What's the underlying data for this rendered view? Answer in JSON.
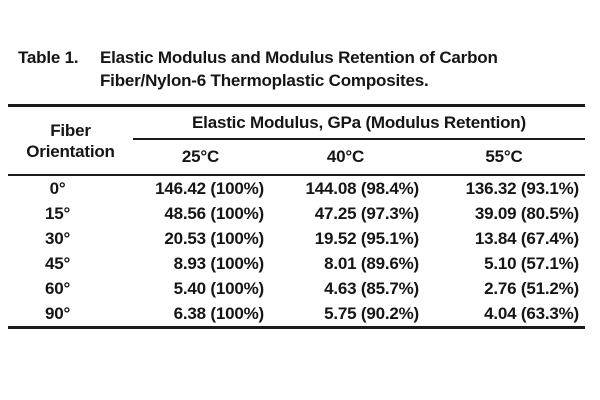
{
  "page": {
    "background": "#ffffff"
  },
  "colors": {
    "text": "#151515",
    "rule": "#1b1b1b",
    "background": "#ffffff"
  },
  "caption": {
    "label": "Table 1.",
    "line1": "Elastic Modulus and Modulus Retention of Carbon",
    "line2": "Fiber/Nylon-6 Thermoplastic Composites."
  },
  "table": {
    "row_header": {
      "line1": "Fiber",
      "line2": "Orientation"
    },
    "group_header": "Elastic Modulus, GPa (Modulus Retention)",
    "columns": [
      "25°C",
      "40°C",
      "55°C"
    ],
    "rows": [
      {
        "orientation": "0°",
        "c25": "146.42 (100%)",
        "c40": "144.08 (98.4%)",
        "c55": "136.32 (93.1%)"
      },
      {
        "orientation": "15°",
        "c25": "48.56 (100%)",
        "c40": "47.25 (97.3%)",
        "c55": "39.09 (80.5%)"
      },
      {
        "orientation": "30°",
        "c25": "20.53 (100%)",
        "c40": "19.52 (95.1%)",
        "c55": "13.84 (67.4%)"
      },
      {
        "orientation": "45°",
        "c25": "8.93 (100%)",
        "c40": "8.01 (89.6%)",
        "c55": "5.10 (57.1%)"
      },
      {
        "orientation": "60°",
        "c25": "5.40 (100%)",
        "c40": "4.63 (85.7%)",
        "c55": "2.76 (51.2%)"
      },
      {
        "orientation": "90°",
        "c25": "6.38 (100%)",
        "c40": "5.75 (90.2%)",
        "c55": "4.04 (63.3%)"
      }
    ]
  },
  "chart_data": {
    "type": "table",
    "title": "Table 1. Elastic Modulus and Modulus Retention of Carbon Fiber/Nylon-6 Thermoplastic Composites.",
    "row_header": "Fiber Orientation",
    "column_group": "Elastic Modulus, GPa (Modulus Retention)",
    "columns": [
      "25°C",
      "40°C",
      "55°C"
    ],
    "rows": [
      {
        "fiber_orientation_deg": 0,
        "modulus_gpa": [
          146.42,
          144.08,
          136.32
        ],
        "retention_pct": [
          100,
          98.4,
          93.1
        ]
      },
      {
        "fiber_orientation_deg": 15,
        "modulus_gpa": [
          48.56,
          47.25,
          39.09
        ],
        "retention_pct": [
          100,
          97.3,
          80.5
        ]
      },
      {
        "fiber_orientation_deg": 30,
        "modulus_gpa": [
          20.53,
          19.52,
          13.84
        ],
        "retention_pct": [
          100,
          95.1,
          67.4
        ]
      },
      {
        "fiber_orientation_deg": 45,
        "modulus_gpa": [
          8.93,
          8.01,
          5.1
        ],
        "retention_pct": [
          100,
          89.6,
          57.1
        ]
      },
      {
        "fiber_orientation_deg": 60,
        "modulus_gpa": [
          5.4,
          4.63,
          2.76
        ],
        "retention_pct": [
          100,
          85.7,
          51.2
        ]
      },
      {
        "fiber_orientation_deg": 90,
        "modulus_gpa": [
          6.38,
          5.75,
          4.04
        ],
        "retention_pct": [
          100,
          90.2,
          63.3
        ]
      }
    ]
  }
}
